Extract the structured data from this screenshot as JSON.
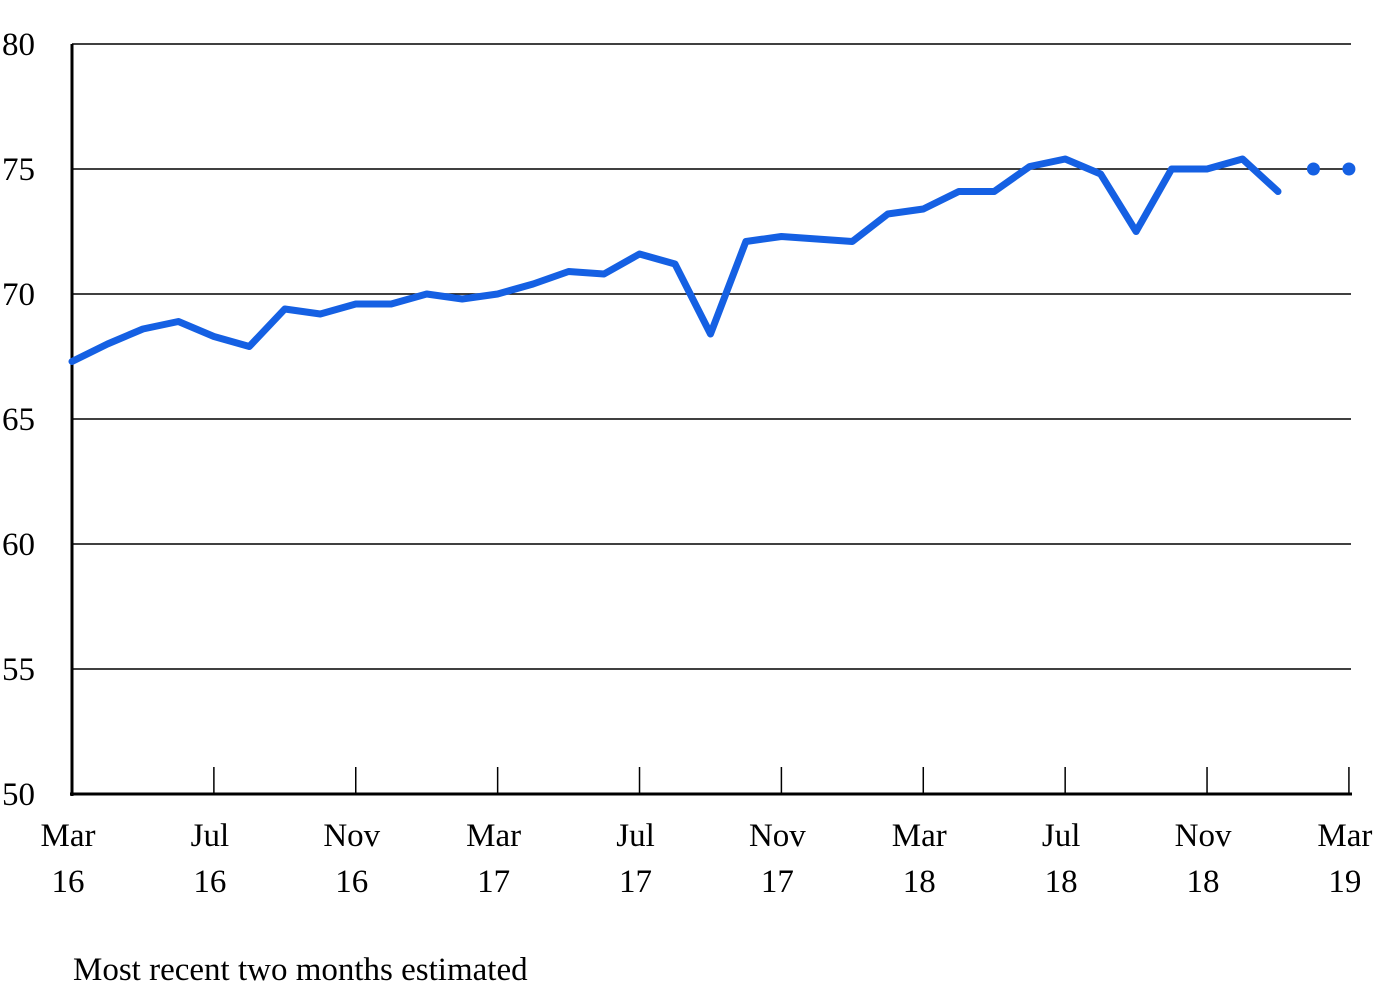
{
  "chart_data": {
    "type": "line",
    "title": "",
    "xlabel": "",
    "ylabel": "",
    "ylim": [
      50,
      80
    ],
    "yticks": [
      "50",
      "55",
      "60",
      "65",
      "70",
      "75",
      "80"
    ],
    "grid": "horizontal",
    "line_color": "#1560e3",
    "x_tick_labels": [
      {
        "month": "Mar",
        "year": "16",
        "index": 0
      },
      {
        "month": "Jul",
        "year": "16",
        "index": 4
      },
      {
        "month": "Nov",
        "year": "16",
        "index": 8
      },
      {
        "month": "Mar",
        "year": "17",
        "index": 12
      },
      {
        "month": "Jul",
        "year": "17",
        "index": 16
      },
      {
        "month": "Nov",
        "year": "17",
        "index": 20
      },
      {
        "month": "Mar",
        "year": "18",
        "index": 24
      },
      {
        "month": "Jul",
        "year": "18",
        "index": 28
      },
      {
        "month": "Nov",
        "year": "18",
        "index": 32
      },
      {
        "month": "Mar",
        "year": "19",
        "index": 36
      }
    ],
    "series": [
      {
        "style": "solid",
        "x": [
          "Mar 16",
          "Apr 16",
          "May 16",
          "Jun 16",
          "Jul 16",
          "Aug 16",
          "Sep 16",
          "Oct 16",
          "Nov 16",
          "Dec 16",
          "Jan 17",
          "Feb 17",
          "Mar 17",
          "Apr 17",
          "May 17",
          "Jun 17",
          "Jul 17",
          "Aug 17",
          "Sep 17",
          "Oct 17",
          "Nov 17",
          "Dec 17",
          "Jan 18",
          "Feb 18",
          "Mar 18",
          "Apr 18",
          "May 18",
          "Jun 18",
          "Jul 18",
          "Aug 18",
          "Sep 18",
          "Oct 18",
          "Nov 18",
          "Dec 18",
          "Jan 19"
        ],
        "values": [
          67.3,
          68.0,
          68.6,
          68.9,
          68.3,
          67.9,
          69.4,
          69.2,
          69.6,
          69.6,
          70.0,
          69.8,
          70.0,
          70.4,
          70.9,
          70.8,
          71.6,
          71.2,
          68.4,
          72.1,
          72.3,
          72.2,
          72.1,
          73.2,
          73.4,
          74.1,
          74.1,
          75.1,
          75.4,
          74.8,
          72.5,
          75.0,
          75.0,
          75.4,
          74.1
        ]
      },
      {
        "style": "dotted",
        "x": [
          "Feb 19",
          "Mar 19"
        ],
        "values": [
          75.0,
          75.0
        ]
      }
    ]
  },
  "footnote": "Most recent two months estimated"
}
